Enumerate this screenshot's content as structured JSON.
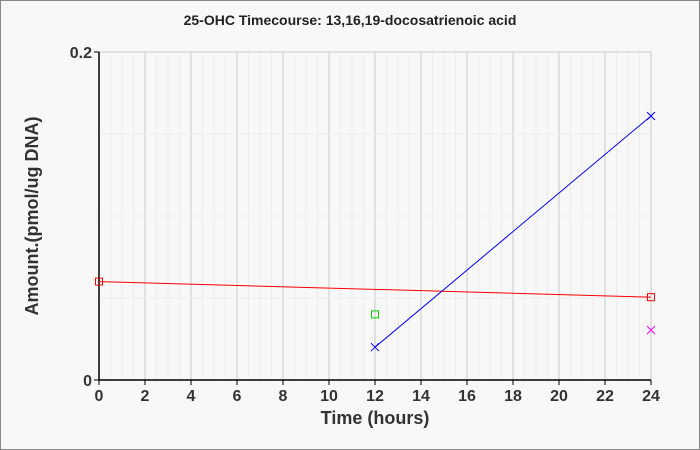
{
  "chart_data": {
    "type": "line",
    "title": "25-OHC Timecourse: 13,16,19-docosatrienoic acid",
    "xlabel": "Time (hours)",
    "ylabel": "Amount.(pmol/ug DNA)",
    "xlim": [
      0,
      24
    ],
    "ylim": [
      0,
      0.2
    ],
    "x_ticks": [
      "0",
      "2",
      "4",
      "6",
      "8",
      "10",
      "12",
      "14",
      "16",
      "18",
      "20",
      "22",
      "24"
    ],
    "y_ticks": [
      "0",
      "0.2"
    ],
    "grid": true,
    "series": [
      {
        "name": "red",
        "color": "#ff0000",
        "marker": "square",
        "line": true,
        "points": [
          [
            0,
            0.06
          ],
          [
            24,
            0.0505
          ]
        ]
      },
      {
        "name": "blue",
        "color": "#0000ff",
        "marker": "x",
        "line": true,
        "points": [
          [
            12,
            0.02
          ],
          [
            24,
            0.161
          ]
        ]
      },
      {
        "name": "green",
        "color": "#00cc00",
        "marker": "square",
        "line": false,
        "points": [
          [
            12,
            0.04
          ]
        ]
      },
      {
        "name": "magenta",
        "color": "#ff00ff",
        "marker": "x",
        "line": false,
        "points": [
          [
            24,
            0.0305
          ]
        ]
      }
    ]
  }
}
